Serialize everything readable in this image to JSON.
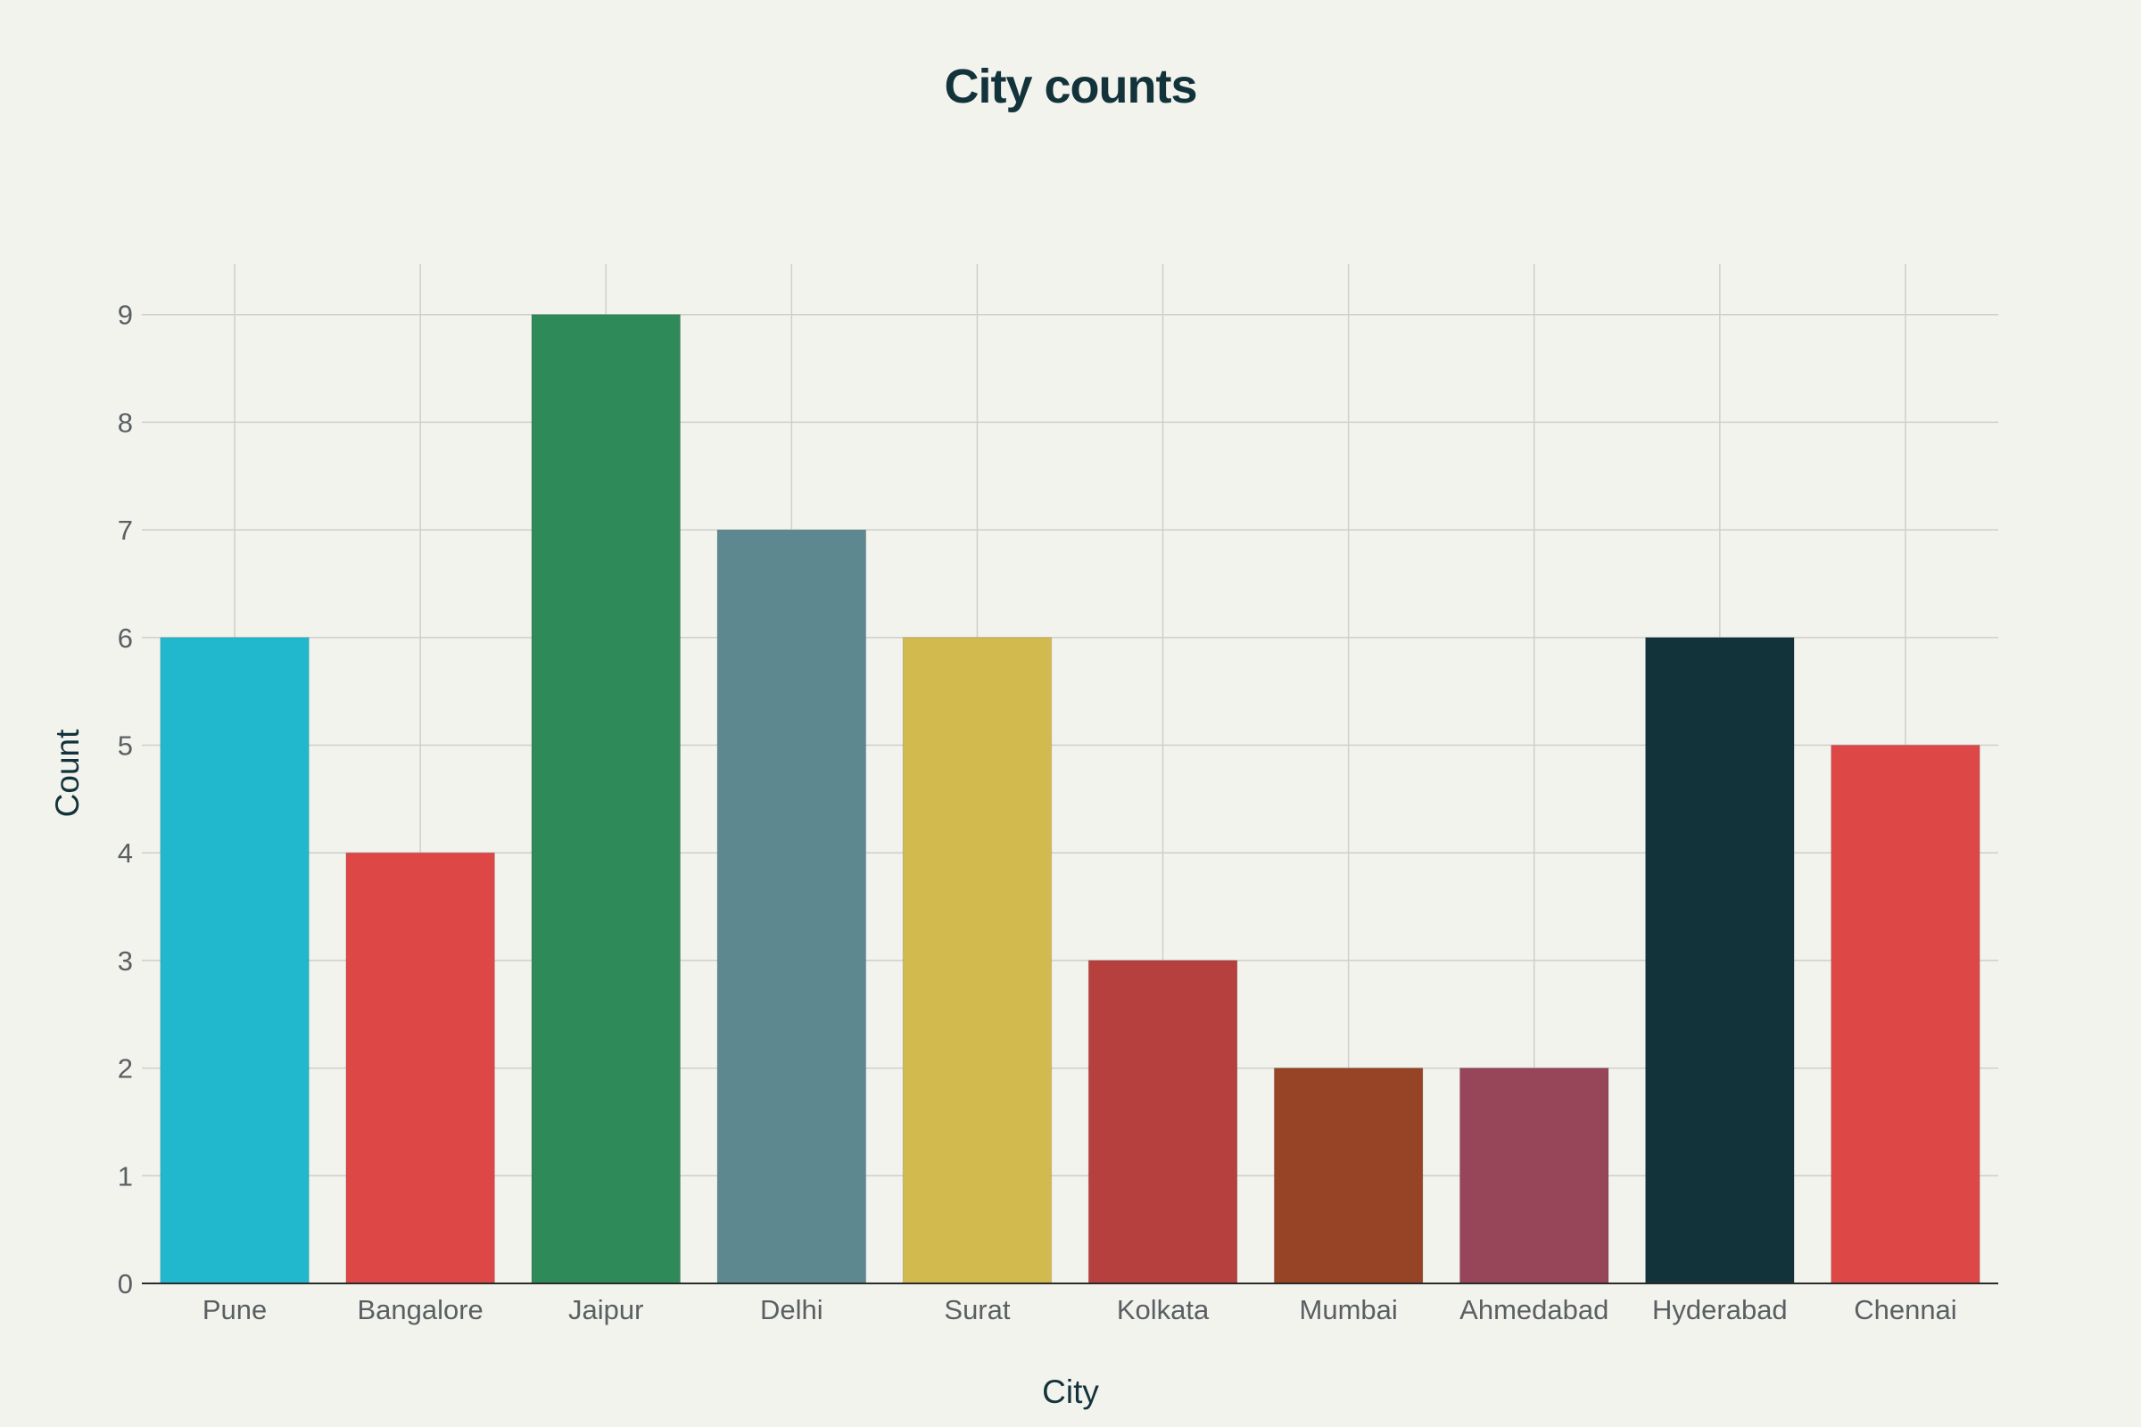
{
  "chart_data": {
    "type": "bar",
    "title": "City counts",
    "xlabel": "City",
    "ylabel": "Count",
    "categories": [
      "Pune",
      "Bangalore",
      "Jaipur",
      "Delhi",
      "Surat",
      "Kolkata",
      "Mumbai",
      "Ahmedabad",
      "Hyderabad",
      "Chennai"
    ],
    "values": [
      6,
      4,
      9,
      7,
      6,
      3,
      2,
      2,
      6,
      5
    ],
    "colors": [
      "#21B8CE",
      "#DD4847",
      "#2E8A58",
      "#5E8890",
      "#D3BA4F",
      "#B5403D",
      "#974325",
      "#974558",
      "#13333B",
      "#DD4847"
    ],
    "ylim": [
      0,
      9.47
    ],
    "yticks": [
      0,
      1,
      2,
      3,
      4,
      5,
      6,
      7,
      8,
      9
    ],
    "grid": true,
    "legend": "none"
  },
  "colors": {
    "background": "#F3F3EE",
    "title": "#13333B",
    "tick_label": "#5A5F62",
    "grid": "#CFCFCA"
  }
}
